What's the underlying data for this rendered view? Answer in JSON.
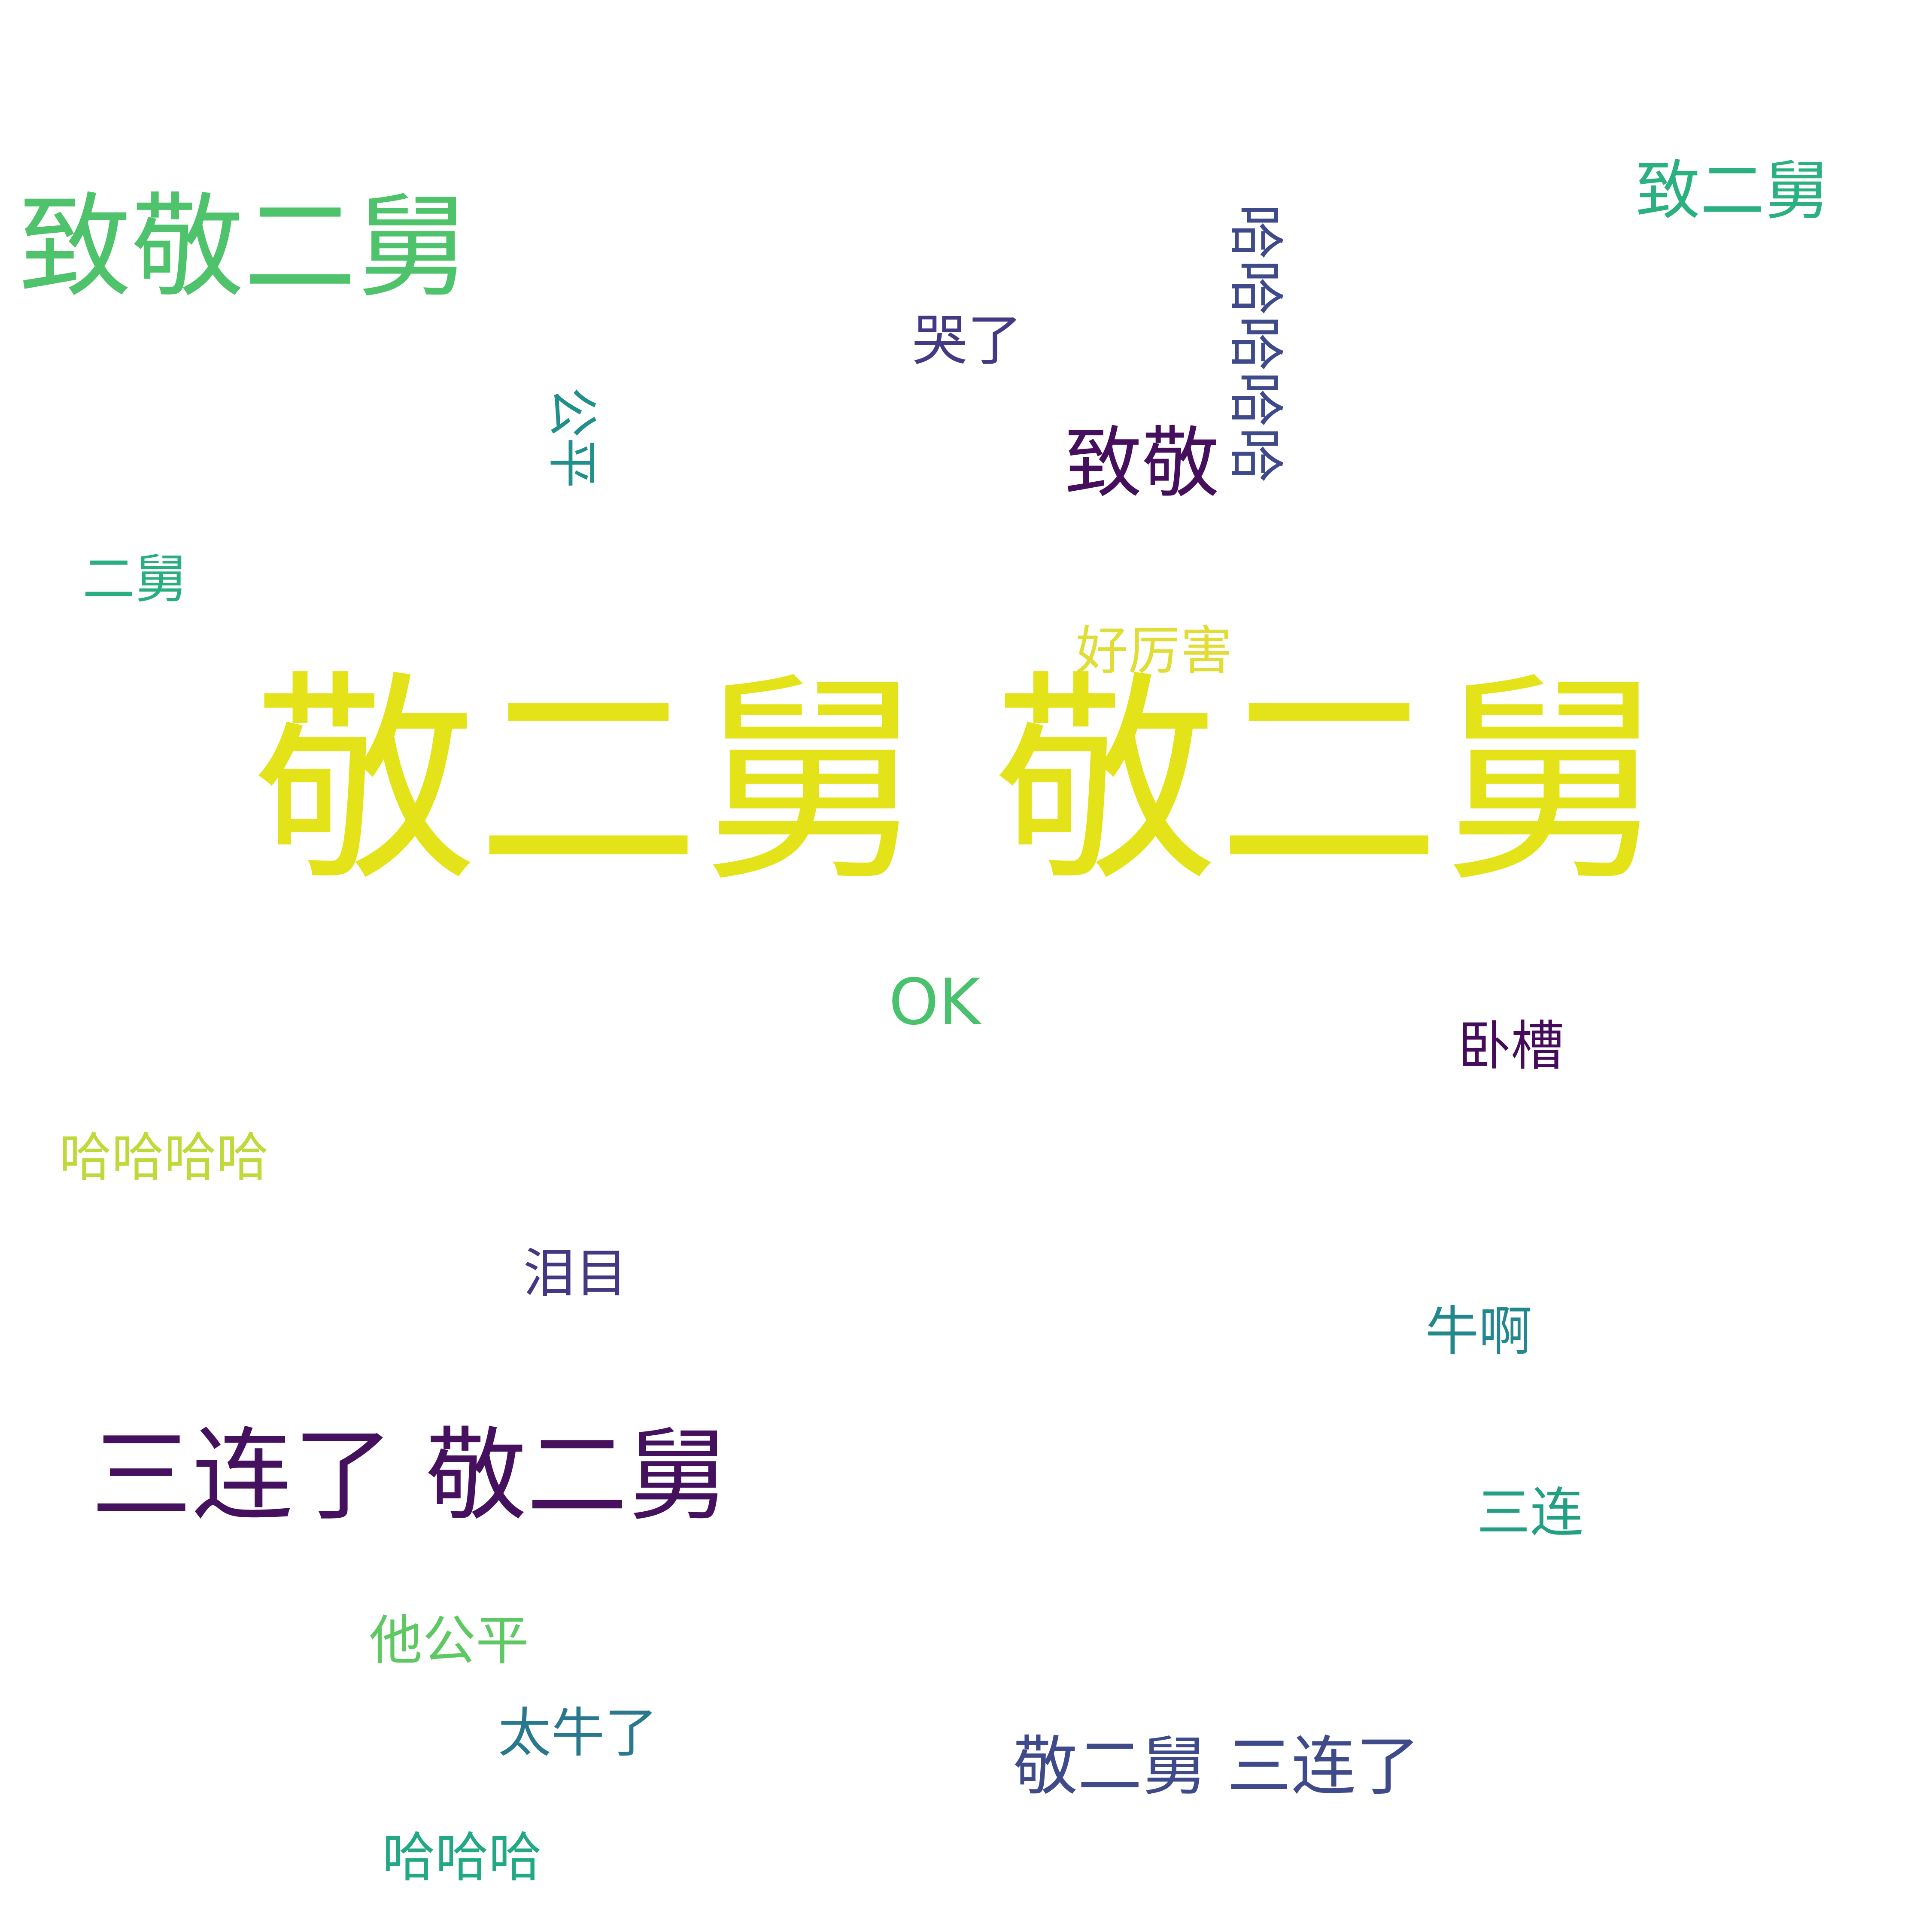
{
  "words": [
    {
      "text": "敬二舅 敬二舅",
      "color": "#e4e31a"
    },
    {
      "text": "致敬二舅",
      "color": "#4ec36b"
    },
    {
      "text": "三连了 敬二舅",
      "color": "#45115f"
    },
    {
      "text": "致敬",
      "color": "#450f5e"
    },
    {
      "text": "敬二舅 三连了",
      "color": "#3e4a89"
    },
    {
      "text": "致二舅",
      "color": "#2bb07f"
    },
    {
      "text": "哈哈哈哈哈",
      "color": "#3e4a89"
    },
    {
      "text": "哭了",
      "color": "#443a83"
    },
    {
      "text": "公平",
      "color": "#218f8c"
    },
    {
      "text": "二舅",
      "color": "#29af7f"
    },
    {
      "text": "好厉害",
      "color": "#e1dd37"
    },
    {
      "text": "OK",
      "color": "#4ac16d"
    },
    {
      "text": "卧槽",
      "color": "#450c5c"
    },
    {
      "text": "哈哈哈哈",
      "color": "#bfd83a"
    },
    {
      "text": "泪目",
      "color": "#453882"
    },
    {
      "text": "牛啊",
      "color": "#23888e"
    },
    {
      "text": "三连",
      "color": "#23a083"
    },
    {
      "text": "他公平",
      "color": "#5ec962"
    },
    {
      "text": "太牛了",
      "color": "#2a788e"
    },
    {
      "text": "哈哈哈",
      "color": "#22a884"
    }
  ]
}
